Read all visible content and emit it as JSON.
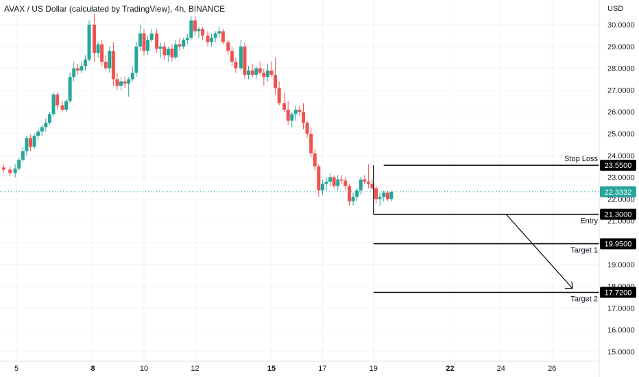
{
  "header": {
    "title": "AVAX / US Dollar (calculated by TradingView), 4h, BINANCE"
  },
  "colors": {
    "up": "#26a69a",
    "down": "#ef5350",
    "level_line": "#000000",
    "price_line": "#26a69a",
    "label_bg": "#000000",
    "label_text": "#ffffff"
  },
  "chart_data": {
    "type": "candlestick",
    "currency": "USD",
    "ylim": [
      14.6,
      31.0
    ],
    "y_ticks": [
      "30.0000",
      "29.0000",
      "28.0000",
      "27.0000",
      "26.0000",
      "25.0000",
      "24.0000",
      "23.0000",
      "22.0000",
      "21.0000",
      "20.0000",
      "19.0000",
      "18.0000",
      "17.0000",
      "16.0000",
      "15.0000"
    ],
    "x_ticks": [
      {
        "label": "5",
        "x": 5,
        "bold": false
      },
      {
        "label": "8",
        "x": 8,
        "bold": true
      },
      {
        "label": "10",
        "x": 10,
        "bold": false
      },
      {
        "label": "12",
        "x": 12,
        "bold": false
      },
      {
        "label": "15",
        "x": 15,
        "bold": true
      },
      {
        "label": "17",
        "x": 17,
        "bold": false
      },
      {
        "label": "19",
        "x": 19,
        "bold": false
      },
      {
        "label": "22",
        "x": 22,
        "bold": true
      },
      {
        "label": "24",
        "x": 24,
        "bold": false
      },
      {
        "label": "26",
        "x": 26,
        "bold": false
      }
    ],
    "xlim": [
      4.4,
      27.3
    ],
    "current_price": "22.3332",
    "current_price_value": 22.3332,
    "candles": [
      [
        4.5,
        23.45,
        23.6,
        23.2,
        23.35
      ],
      [
        4.75,
        23.35,
        23.5,
        23.05,
        23.2
      ],
      [
        4.95,
        23.2,
        23.6,
        23.0,
        23.4
      ],
      [
        5.1,
        23.4,
        23.9,
        23.3,
        23.8
      ],
      [
        5.25,
        23.8,
        24.4,
        23.7,
        24.2
      ],
      [
        5.4,
        24.2,
        24.9,
        24.0,
        24.8
      ],
      [
        5.55,
        24.8,
        24.95,
        24.2,
        24.4
      ],
      [
        5.7,
        24.4,
        25.0,
        24.3,
        24.9
      ],
      [
        5.85,
        24.9,
        25.2,
        24.7,
        25.1
      ],
      [
        6.0,
        25.1,
        25.4,
        24.9,
        25.3
      ],
      [
        6.15,
        25.3,
        25.7,
        25.1,
        25.5
      ],
      [
        6.3,
        25.5,
        26.0,
        25.4,
        25.9
      ],
      [
        6.45,
        25.9,
        26.9,
        25.8,
        26.8
      ],
      [
        6.6,
        26.8,
        26.9,
        26.1,
        26.3
      ],
      [
        6.8,
        26.3,
        26.5,
        26.0,
        26.1
      ],
      [
        6.95,
        26.1,
        26.6,
        26.0,
        26.5
      ],
      [
        7.1,
        26.5,
        27.8,
        26.4,
        27.6
      ],
      [
        7.25,
        27.6,
        28.3,
        27.4,
        28.0
      ],
      [
        7.4,
        28.0,
        28.2,
        27.7,
        27.9
      ],
      [
        7.55,
        27.9,
        28.3,
        27.8,
        28.1
      ],
      [
        7.7,
        28.1,
        28.6,
        27.9,
        28.4
      ],
      [
        7.85,
        28.4,
        30.2,
        28.3,
        30.0
      ],
      [
        8.05,
        30.0,
        30.5,
        28.3,
        28.7
      ],
      [
        8.2,
        28.7,
        29.2,
        28.5,
        29.1
      ],
      [
        8.35,
        29.1,
        29.3,
        28.1,
        28.3
      ],
      [
        8.5,
        28.3,
        28.6,
        27.9,
        28.0
      ],
      [
        8.65,
        28.0,
        29.0,
        27.8,
        28.8
      ],
      [
        8.8,
        28.8,
        29.2,
        27.2,
        27.5
      ],
      [
        8.95,
        27.5,
        27.8,
        27.0,
        27.2
      ],
      [
        9.1,
        27.2,
        27.6,
        27.0,
        27.4
      ],
      [
        9.25,
        27.4,
        27.6,
        27.1,
        27.3
      ],
      [
        9.4,
        27.3,
        27.6,
        26.7,
        27.5
      ],
      [
        9.55,
        27.5,
        28.1,
        27.4,
        27.8
      ],
      [
        9.7,
        27.8,
        29.2,
        27.6,
        29.0
      ],
      [
        9.85,
        29.0,
        30.0,
        28.8,
        29.6
      ],
      [
        10.0,
        29.6,
        29.8,
        28.6,
        28.8
      ],
      [
        10.15,
        28.8,
        29.5,
        28.6,
        29.3
      ],
      [
        10.3,
        29.3,
        29.8,
        29.2,
        29.6
      ],
      [
        10.5,
        29.6,
        29.8,
        28.7,
        28.9
      ],
      [
        10.65,
        28.9,
        29.2,
        28.5,
        29.0
      ],
      [
        10.8,
        29.0,
        29.2,
        28.4,
        28.6
      ],
      [
        10.95,
        28.6,
        29.0,
        28.3,
        28.9
      ],
      [
        11.1,
        28.9,
        29.1,
        28.3,
        28.5
      ],
      [
        11.25,
        28.5,
        29.3,
        28.4,
        29.1
      ],
      [
        11.4,
        29.1,
        29.4,
        28.8,
        29.0
      ],
      [
        11.55,
        29.0,
        29.4,
        28.9,
        29.3
      ],
      [
        11.7,
        29.3,
        29.6,
        29.1,
        29.4
      ],
      [
        11.85,
        29.4,
        30.4,
        29.3,
        30.2
      ],
      [
        12.0,
        30.2,
        30.4,
        29.5,
        29.7
      ],
      [
        12.15,
        29.7,
        29.9,
        29.4,
        29.8
      ],
      [
        12.3,
        29.8,
        29.9,
        29.3,
        29.5
      ],
      [
        12.5,
        29.5,
        29.7,
        29.0,
        29.2
      ],
      [
        12.65,
        29.2,
        29.6,
        29.0,
        29.4
      ],
      [
        12.8,
        29.4,
        29.7,
        29.2,
        29.6
      ],
      [
        12.95,
        29.6,
        29.9,
        29.4,
        29.7
      ],
      [
        13.1,
        29.7,
        29.8,
        29.1,
        29.2
      ],
      [
        13.3,
        29.2,
        29.3,
        28.6,
        28.8
      ],
      [
        13.45,
        28.8,
        29.0,
        28.1,
        28.3
      ],
      [
        13.6,
        28.3,
        28.5,
        27.8,
        28.0
      ],
      [
        13.8,
        28.0,
        29.3,
        27.9,
        29.0
      ],
      [
        13.95,
        29.0,
        29.2,
        27.5,
        27.7
      ],
      [
        14.1,
        27.7,
        28.1,
        27.5,
        27.9
      ],
      [
        14.25,
        27.9,
        28.2,
        27.6,
        27.7
      ],
      [
        14.4,
        27.7,
        28.1,
        27.5,
        28.0
      ],
      [
        14.55,
        28.0,
        28.3,
        27.7,
        27.8
      ],
      [
        14.7,
        27.8,
        28.0,
        27.2,
        27.6
      ],
      [
        14.85,
        27.6,
        28.2,
        27.4,
        27.9
      ],
      [
        15.0,
        27.9,
        28.3,
        27.6,
        27.7
      ],
      [
        15.15,
        27.7,
        28.5,
        26.8,
        27.1
      ],
      [
        15.3,
        27.1,
        27.4,
        26.3,
        26.4
      ],
      [
        15.5,
        26.4,
        26.9,
        26.0,
        26.1
      ],
      [
        15.65,
        26.1,
        26.5,
        25.4,
        25.6
      ],
      [
        15.8,
        25.6,
        26.0,
        25.3,
        25.9
      ],
      [
        15.95,
        25.9,
        26.3,
        25.6,
        26.1
      ],
      [
        16.1,
        26.1,
        26.3,
        25.8,
        26.0
      ],
      [
        16.25,
        26.0,
        26.4,
        25.2,
        25.5
      ],
      [
        16.4,
        25.5,
        25.6,
        24.8,
        25.0
      ],
      [
        16.55,
        25.0,
        25.3,
        23.9,
        24.1
      ],
      [
        16.7,
        24.1,
        24.3,
        23.3,
        23.5
      ],
      [
        16.85,
        23.5,
        23.6,
        22.1,
        22.4
      ],
      [
        17.0,
        22.4,
        22.9,
        22.2,
        22.7
      ],
      [
        17.15,
        22.7,
        23.0,
        22.4,
        22.8
      ],
      [
        17.3,
        22.8,
        23.2,
        22.6,
        23.0
      ],
      [
        17.45,
        23.0,
        23.1,
        22.5,
        22.6
      ],
      [
        17.6,
        22.6,
        23.1,
        22.4,
        22.9
      ],
      [
        17.75,
        22.9,
        23.1,
        22.7,
        22.85
      ],
      [
        17.9,
        22.85,
        23.0,
        22.4,
        22.6
      ],
      [
        18.05,
        22.6,
        22.7,
        21.7,
        21.9
      ],
      [
        18.2,
        21.9,
        22.3,
        21.7,
        22.1
      ],
      [
        18.35,
        22.1,
        22.5,
        21.9,
        22.4
      ],
      [
        18.5,
        22.4,
        23.0,
        22.2,
        22.9
      ],
      [
        18.65,
        22.9,
        23.1,
        22.7,
        22.8
      ],
      [
        18.8,
        22.8,
        23.6,
        22.5,
        22.7
      ],
      [
        18.95,
        22.7,
        22.9,
        22.4,
        22.5
      ],
      [
        19.1,
        22.5,
        22.6,
        21.8,
        22.0
      ],
      [
        19.25,
        22.0,
        22.3,
        21.7,
        22.1
      ],
      [
        19.4,
        22.1,
        22.4,
        21.9,
        22.3
      ],
      [
        19.55,
        22.3,
        22.4,
        21.9,
        22.0
      ],
      [
        19.7,
        22.0,
        22.4,
        21.9,
        22.33
      ]
    ],
    "levels": [
      {
        "name": "Stop Loss",
        "value": 23.55,
        "label": "23.5500",
        "caption": "Stop Loss",
        "x_start": 19.4
      },
      {
        "name": "Entry",
        "value": 21.3,
        "label": "21.3000",
        "caption": "Entry",
        "x_start": 19.0
      },
      {
        "name": "Target 1",
        "value": 19.95,
        "label": "19.9500",
        "caption": "Target 1",
        "x_start": 19.0
      },
      {
        "name": "Target 2",
        "value": 17.72,
        "label": "17.7200",
        "caption": "Target 2",
        "x_start": 19.0
      }
    ],
    "annotations": {
      "entry_box_left_x": 19.0,
      "arrow": {
        "from": [
          24.2,
          21.3
        ],
        "to": [
          26.8,
          17.9
        ]
      }
    }
  }
}
